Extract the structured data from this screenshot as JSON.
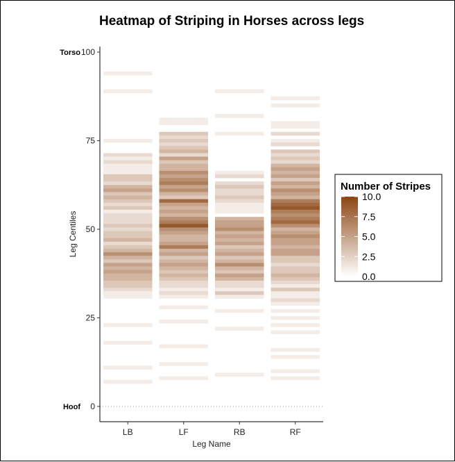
{
  "chart_data": {
    "type": "heatmap",
    "title": "Heatmap of Striping in Horses across legs",
    "xlabel": "Leg Name",
    "ylabel": "Leg Centiles",
    "categories": [
      "LB",
      "LF",
      "RB",
      "RF"
    ],
    "ylim": [
      0,
      100
    ],
    "y_ticks": [
      0,
      25,
      50,
      75,
      100
    ],
    "y_tick_labels": [
      "0",
      "25",
      "50",
      "75",
      "100"
    ],
    "y_annotations": [
      {
        "label": "Hoof",
        "y": 0
      },
      {
        "label": "Torso",
        "y": 100
      }
    ],
    "reference_line_y": 0,
    "grid": false,
    "legend": {
      "title": "Number of Stripes",
      "position": "right",
      "min": 0,
      "max": 10,
      "ticks": [
        10.0,
        7.5,
        5.0,
        2.5,
        0.0
      ],
      "tick_labels": [
        "10.0",
        "7.5",
        "5.0",
        "2.5",
        "0.0"
      ],
      "low_color": "#ffffff",
      "high_color": "#8b4513"
    },
    "band_height_centiles": 1,
    "cells": {
      "LB": [
        [
          94,
          1
        ],
        [
          89,
          1
        ],
        [
          75,
          1
        ],
        [
          71,
          2
        ],
        [
          70,
          1
        ],
        [
          69,
          2
        ],
        [
          68,
          1
        ],
        [
          67,
          1
        ],
        [
          66,
          1
        ],
        [
          65,
          3
        ],
        [
          64,
          3
        ],
        [
          63,
          2
        ],
        [
          62,
          4
        ],
        [
          61,
          5
        ],
        [
          60,
          3
        ],
        [
          59,
          4
        ],
        [
          58,
          3
        ],
        [
          57,
          2
        ],
        [
          56,
          3
        ],
        [
          55,
          1
        ],
        [
          54,
          2
        ],
        [
          53,
          2
        ],
        [
          52,
          2
        ],
        [
          51,
          3
        ],
        [
          50,
          2
        ],
        [
          49,
          3
        ],
        [
          48,
          3
        ],
        [
          47,
          4
        ],
        [
          46,
          2
        ],
        [
          45,
          3
        ],
        [
          44,
          4
        ],
        [
          43,
          6
        ],
        [
          42,
          4
        ],
        [
          41,
          3
        ],
        [
          40,
          5
        ],
        [
          39,
          4
        ],
        [
          38,
          5
        ],
        [
          37,
          4
        ],
        [
          36,
          4
        ],
        [
          35,
          3
        ],
        [
          34,
          3
        ],
        [
          33,
          2
        ],
        [
          32,
          1
        ],
        [
          31,
          1
        ],
        [
          23,
          1
        ],
        [
          18,
          1
        ],
        [
          11,
          1
        ],
        [
          7,
          1
        ]
      ],
      "LF": [
        [
          81,
          1
        ],
        [
          80,
          1
        ],
        [
          77,
          3
        ],
        [
          76,
          2
        ],
        [
          75,
          3
        ],
        [
          74,
          2
        ],
        [
          73,
          3
        ],
        [
          72,
          4
        ],
        [
          71,
          2
        ],
        [
          70,
          5
        ],
        [
          69,
          3
        ],
        [
          68,
          4
        ],
        [
          67,
          4
        ],
        [
          66,
          6
        ],
        [
          65,
          5
        ],
        [
          64,
          6
        ],
        [
          63,
          7
        ],
        [
          62,
          5
        ],
        [
          61,
          6
        ],
        [
          60,
          4
        ],
        [
          59,
          3
        ],
        [
          58,
          8
        ],
        [
          57,
          5
        ],
        [
          56,
          4
        ],
        [
          55,
          5
        ],
        [
          54,
          4
        ],
        [
          53,
          6
        ],
        [
          52,
          7
        ],
        [
          51,
          9
        ],
        [
          50,
          6
        ],
        [
          49,
          5
        ],
        [
          48,
          4
        ],
        [
          47,
          4
        ],
        [
          46,
          5
        ],
        [
          45,
          7
        ],
        [
          44,
          4
        ],
        [
          43,
          5
        ],
        [
          42,
          3
        ],
        [
          41,
          4
        ],
        [
          40,
          5
        ],
        [
          39,
          4
        ],
        [
          38,
          3
        ],
        [
          37,
          4
        ],
        [
          36,
          3
        ],
        [
          35,
          2
        ],
        [
          34,
          2
        ],
        [
          33,
          1
        ],
        [
          32,
          2
        ],
        [
          31,
          1
        ],
        [
          28,
          1
        ],
        [
          24,
          1
        ],
        [
          17,
          1
        ],
        [
          12,
          1
        ],
        [
          8,
          1
        ]
      ],
      "RB": [
        [
          89,
          1
        ],
        [
          82,
          1
        ],
        [
          77,
          1
        ],
        [
          66,
          1
        ],
        [
          65,
          2
        ],
        [
          63,
          2
        ],
        [
          62,
          3
        ],
        [
          61,
          2
        ],
        [
          60,
          2
        ],
        [
          59,
          3
        ],
        [
          58,
          2
        ],
        [
          57,
          1
        ],
        [
          56,
          1
        ],
        [
          55,
          1
        ],
        [
          53,
          4
        ],
        [
          52,
          5
        ],
        [
          51,
          5
        ],
        [
          50,
          6
        ],
        [
          49,
          4
        ],
        [
          48,
          5
        ],
        [
          47,
          4
        ],
        [
          46,
          5
        ],
        [
          45,
          3
        ],
        [
          44,
          4
        ],
        [
          43,
          5
        ],
        [
          42,
          3
        ],
        [
          41,
          4
        ],
        [
          40,
          6
        ],
        [
          39,
          4
        ],
        [
          38,
          3
        ],
        [
          37,
          5
        ],
        [
          36,
          4
        ],
        [
          35,
          2
        ],
        [
          34,
          2
        ],
        [
          33,
          1
        ],
        [
          32,
          3
        ],
        [
          31,
          1
        ],
        [
          27,
          1
        ],
        [
          22,
          1
        ],
        [
          9,
          1
        ]
      ],
      "RF": [
        [
          87,
          1
        ],
        [
          85,
          1
        ],
        [
          80,
          1
        ],
        [
          79,
          1
        ],
        [
          77,
          2
        ],
        [
          75,
          1
        ],
        [
          74,
          2
        ],
        [
          72,
          3
        ],
        [
          71,
          2
        ],
        [
          70,
          3
        ],
        [
          69,
          2
        ],
        [
          68,
          4
        ],
        [
          67,
          5
        ],
        [
          66,
          4
        ],
        [
          65,
          5
        ],
        [
          64,
          3
        ],
        [
          63,
          5
        ],
        [
          62,
          4
        ],
        [
          61,
          6
        ],
        [
          60,
          5
        ],
        [
          59,
          4
        ],
        [
          58,
          7
        ],
        [
          57,
          8
        ],
        [
          56,
          9
        ],
        [
          55,
          7
        ],
        [
          54,
          6
        ],
        [
          53,
          7
        ],
        [
          52,
          8
        ],
        [
          51,
          6
        ],
        [
          50,
          4
        ],
        [
          49,
          5
        ],
        [
          48,
          6
        ],
        [
          47,
          5
        ],
        [
          46,
          5
        ],
        [
          45,
          4
        ],
        [
          44,
          5
        ],
        [
          43,
          5
        ],
        [
          42,
          3
        ],
        [
          41,
          3
        ],
        [
          40,
          2
        ],
        [
          39,
          3
        ],
        [
          38,
          3
        ],
        [
          37,
          4
        ],
        [
          36,
          3
        ],
        [
          35,
          2
        ],
        [
          34,
          1
        ],
        [
          33,
          3
        ],
        [
          32,
          1
        ],
        [
          31,
          1
        ],
        [
          30,
          2
        ],
        [
          29,
          1
        ],
        [
          27,
          1
        ],
        [
          25,
          1
        ],
        [
          23,
          1
        ],
        [
          21,
          1
        ],
        [
          16,
          1
        ],
        [
          14,
          1
        ],
        [
          10,
          1
        ],
        [
          8,
          1
        ]
      ]
    }
  }
}
